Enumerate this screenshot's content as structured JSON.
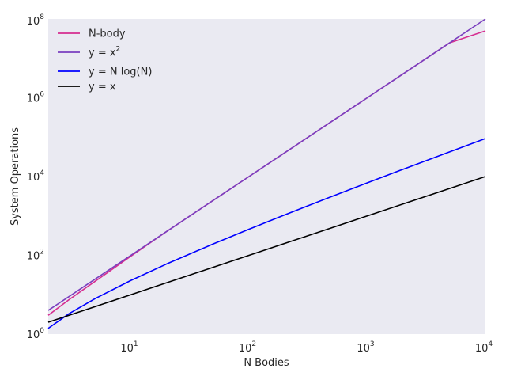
{
  "chart_data": {
    "type": "line",
    "xlabel": "N Bodies",
    "ylabel": "System Operations",
    "xscale": "log",
    "yscale": "log",
    "xlim": [
      2,
      10000
    ],
    "ylim": [
      1,
      100000000
    ],
    "grid": false,
    "background": "#eaeaf2",
    "legend_position": "upper-left",
    "x_ticks": [
      {
        "value": 10,
        "base": "10",
        "exp": "1"
      },
      {
        "value": 100,
        "base": "10",
        "exp": "2"
      },
      {
        "value": 1000,
        "base": "10",
        "exp": "3"
      },
      {
        "value": 10000,
        "base": "10",
        "exp": "4"
      }
    ],
    "y_ticks": [
      {
        "value": 1,
        "base": "10",
        "exp": "0"
      },
      {
        "value": 100,
        "base": "10",
        "exp": "2"
      },
      {
        "value": 10000,
        "base": "10",
        "exp": "4"
      },
      {
        "value": 1000000,
        "base": "10",
        "exp": "6"
      },
      {
        "value": 100000000,
        "base": "10",
        "exp": "8"
      }
    ],
    "x": [
      2,
      3,
      5,
      10,
      20,
      50,
      100,
      200,
      500,
      1000,
      2000,
      5000,
      10000
    ],
    "series": [
      {
        "name": "N-body",
        "name_base": "N-body",
        "name_sup": "",
        "color": "#d62d90",
        "values": [
          3,
          7.5,
          22,
          95,
          400,
          2500,
          10000,
          40000,
          250000,
          1000000,
          4000000,
          25000000,
          50000000
        ]
      },
      {
        "name": "y = x^2",
        "name_base": "y = x",
        "name_sup": "2",
        "color": "#7a3fbf",
        "values": [
          4,
          9,
          25,
          100,
          400,
          2500,
          10000,
          40000,
          250000,
          1000000,
          4000000,
          25000000,
          100000000
        ]
      },
      {
        "name": "y = N log(N)",
        "name_base": "y = N log(N)",
        "name_sup": "",
        "color": "#0000ff",
        "values": [
          1.4,
          3.3,
          8,
          23,
          60,
          196,
          460,
          1060,
          3110,
          6900,
          15200,
          42600,
          92100
        ]
      },
      {
        "name": "y = x",
        "name_base": "y = x",
        "name_sup": "",
        "color": "#000000",
        "values": [
          2,
          3,
          5,
          10,
          20,
          50,
          100,
          200,
          500,
          1000,
          2000,
          5000,
          10000
        ]
      }
    ]
  }
}
